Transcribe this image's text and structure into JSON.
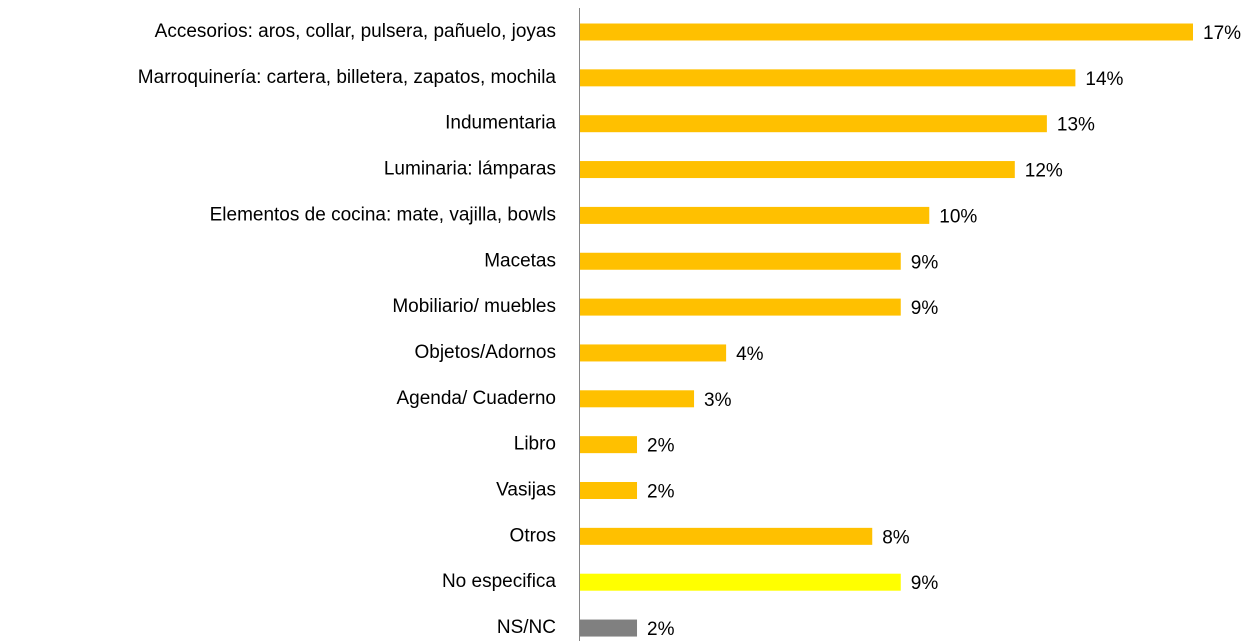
{
  "chart_data": {
    "type": "bar",
    "orientation": "horizontal",
    "categories": [
      "Accesorios: aros, collar, pulsera, pañuelo, joyas",
      "Marroquinería: cartera, billetera, zapatos, mochila",
      "Indumentaria",
      "Luminaria: lámparas",
      "Elementos de cocina: mate, vajilla, bowls",
      "Macetas",
      "Mobiliario/ muebles",
      "Objetos/Adornos",
      "Agenda/ Cuaderno",
      "Libro",
      "Vasijas",
      "Otros",
      "No especifica",
      "NS/NC"
    ],
    "values": [
      17.2,
      13.9,
      13.1,
      12.2,
      9.8,
      9.0,
      9.0,
      4.1,
      3.2,
      1.6,
      1.6,
      8.2,
      9.0,
      1.6
    ],
    "value_labels": [
      "17%",
      "14%",
      "13%",
      "12%",
      "10%",
      "9%",
      "9%",
      "4%",
      "3%",
      "2%",
      "2%",
      "8%",
      "9%",
      "2%"
    ],
    "colors": [
      "#ffc000",
      "#ffc000",
      "#ffc000",
      "#ffc000",
      "#ffc000",
      "#ffc000",
      "#ffc000",
      "#ffc000",
      "#ffc000",
      "#ffc000",
      "#ffc000",
      "#ffc000",
      "#ffff00",
      "#808080"
    ]
  }
}
